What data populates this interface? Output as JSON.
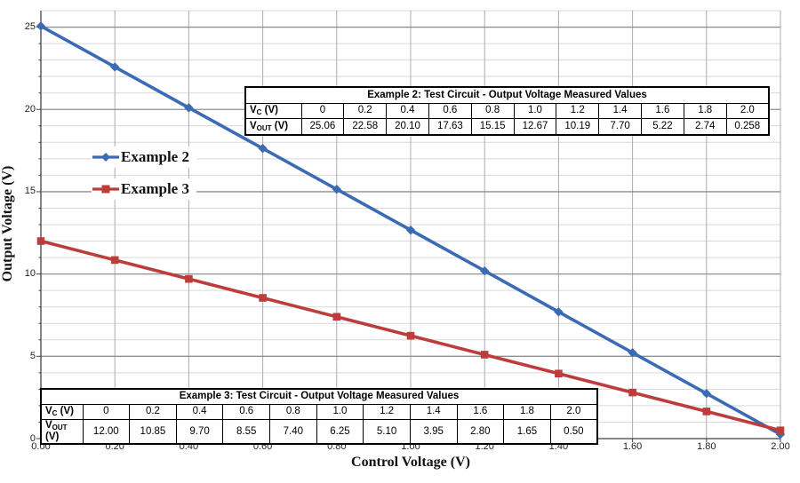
{
  "chart_data": {
    "type": "line",
    "title": "",
    "xlabel": "Control Voltage (V)",
    "ylabel": "Output Voltage (V)",
    "x": [
      0,
      0.2,
      0.4,
      0.6,
      0.8,
      1.0,
      1.2,
      1.4,
      1.6,
      1.8,
      2.0
    ],
    "series": [
      {
        "name": "Example 2",
        "marker": "diamond",
        "color": "#3B6BB4",
        "values": [
          25.06,
          22.58,
          20.1,
          17.63,
          15.15,
          12.67,
          10.19,
          7.7,
          5.22,
          2.74,
          0.258
        ]
      },
      {
        "name": "Example 3",
        "marker": "square",
        "color": "#BD3C3C",
        "values": [
          12.0,
          10.85,
          9.7,
          8.55,
          7.4,
          6.25,
          5.1,
          3.95,
          2.8,
          1.65,
          0.5
        ]
      }
    ],
    "xlim": [
      0,
      2.0
    ],
    "ylim": [
      0,
      26
    ],
    "grid": {
      "y_minor_step": 1,
      "y_major_step": 5,
      "x_step": 0.2,
      "grid_on": true
    },
    "xtick_labels": [
      "0.00",
      "0.20",
      "0.40",
      "0.60",
      "0.80",
      "1.00",
      "1.20",
      "1.40",
      "1.60",
      "1.80",
      "2.00"
    ],
    "ytick_labels": [
      "0",
      "5",
      "10",
      "15",
      "20",
      "25"
    ],
    "legend_position": "inside-left",
    "colors": {
      "minor_grid": "#D9D9D9",
      "major_grid": "#8F8F8F",
      "vertical_grid": "#ACACAC",
      "axis": "#404040"
    }
  },
  "tables": [
    {
      "id": "example2",
      "title": "Example 2: Test Circuit - Output Voltage Measured Values",
      "rows": [
        {
          "label_base": "V",
          "label_sub": "C",
          "label_suffix": " (V)",
          "cells": [
            "0",
            "0.2",
            "0.4",
            "0.6",
            "0.8",
            "1.0",
            "1.2",
            "1.4",
            "1.6",
            "1.8",
            "2.0"
          ]
        },
        {
          "label_base": "V",
          "label_sub": "OUT",
          "label_suffix": " (V)",
          "cells": [
            "25.06",
            "22.58",
            "20.10",
            "17.63",
            "15.15",
            "12.67",
            "10.19",
            "7.70",
            "5.22",
            "2.74",
            "0.258"
          ]
        }
      ]
    },
    {
      "id": "example3",
      "title": "Example 3: Test Circuit - Output Voltage Measured Values",
      "rows": [
        {
          "label_base": "V",
          "label_sub": "C",
          "label_suffix": " (V)",
          "cells": [
            "0",
            "0.2",
            "0.4",
            "0.6",
            "0.8",
            "1.0",
            "1.2",
            "1.4",
            "1.6",
            "1.8",
            "2.0"
          ]
        },
        {
          "label_base": "V",
          "label_sub": "OUT",
          "label_suffix": " (V)",
          "cells": [
            "12.00",
            "10.85",
            "9.70",
            "8.55",
            "7.40",
            "6.25",
            "5.10",
            "3.95",
            "2.80",
            "1.65",
            "0.50"
          ]
        }
      ]
    }
  ]
}
